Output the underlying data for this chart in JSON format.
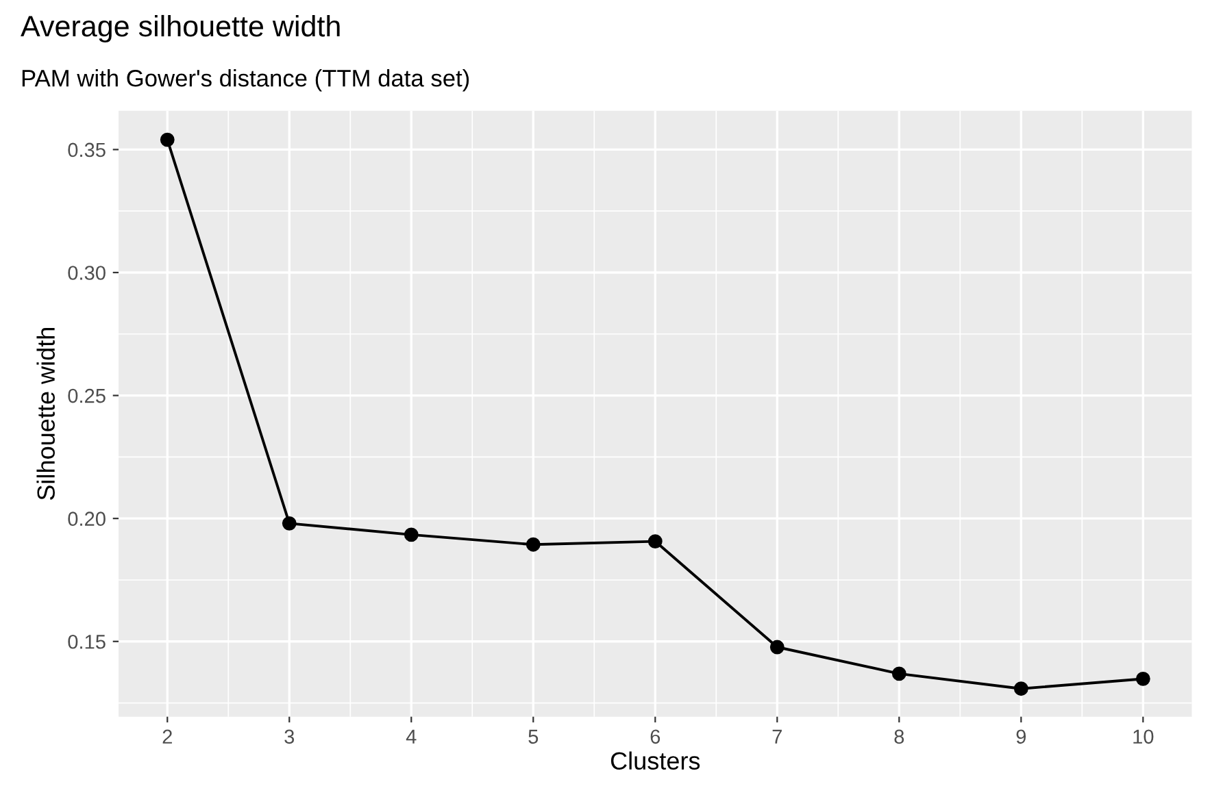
{
  "chart_data": {
    "type": "line",
    "title": "Average silhouette width",
    "subtitle": "PAM with Gower's distance (TTM data set)",
    "xlabel": "Clusters",
    "ylabel": "Silhouette width",
    "x": [
      2,
      3,
      4,
      5,
      6,
      7,
      8,
      9,
      10
    ],
    "series": [
      {
        "color": "#000000",
        "values": [
          0.354,
          0.198,
          0.1934,
          0.1894,
          0.1907,
          0.1477,
          0.1369,
          0.1308,
          0.1348
        ]
      }
    ],
    "xlim": [
      1.6,
      10.4
    ],
    "xticks": [
      2,
      3,
      4,
      5,
      6,
      7,
      8,
      9,
      10
    ],
    "ylim": [
      0.1194,
      0.3658
    ],
    "yticks": [
      0.15,
      {
        "value": 0.2,
        "label": "0.20"
      },
      0.25,
      {
        "value": 0.3,
        "label": "0.30"
      },
      0.35
    ],
    "grid": true,
    "marker": "circle",
    "line_style": "solid"
  }
}
